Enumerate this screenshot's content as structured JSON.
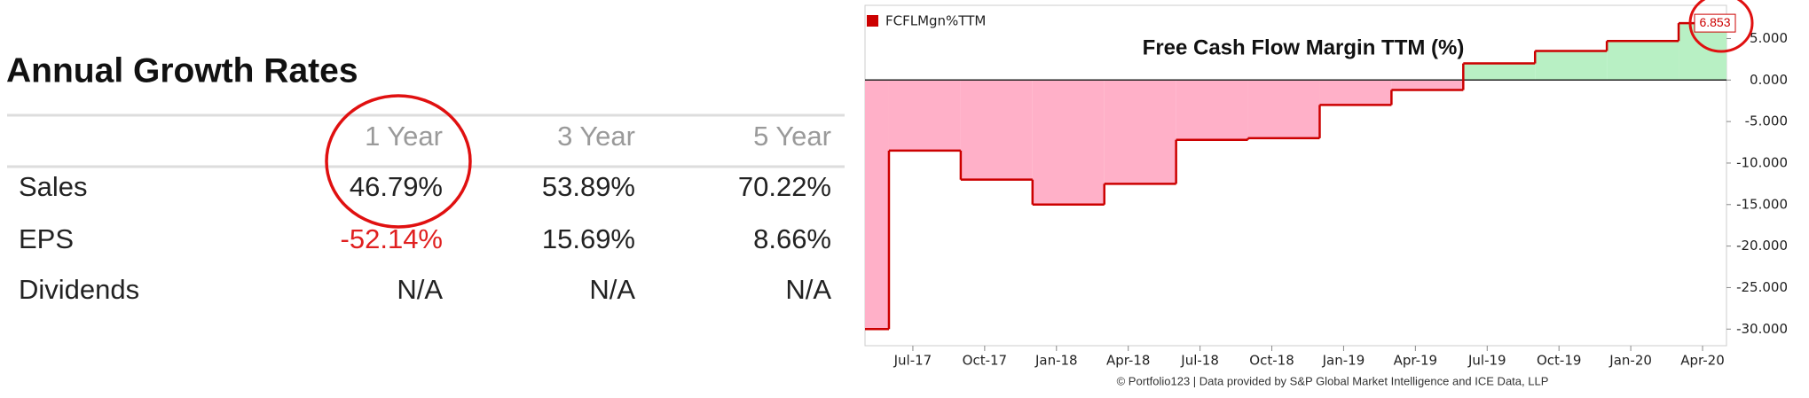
{
  "table": {
    "title": "Annual Growth Rates",
    "header": [
      "1 Year",
      "3 Year",
      "5 Year"
    ],
    "rows": [
      [
        "Sales",
        "46.79%",
        "53.89%",
        "70.22%"
      ],
      [
        "EPS",
        "-52.14%",
        "15.69%",
        "8.66%"
      ],
      [
        "Dividends",
        "N/A",
        "N/A",
        "N/A"
      ]
    ]
  },
  "chart_data": {
    "type": "step-area",
    "title": "Free Cash Flow Margin TTM (%)",
    "footer": "© Portfolio123 | Data provided by S&P Global Market Intelligence and ICE Data, LLP",
    "series": [
      {
        "name": "FCFLMgn%TTM",
        "color": "#cc0000",
        "positive_fill": "#b8f0c4",
        "negative_fill": "#ffb0c8",
        "x": [
          "2017-05",
          "2017-06",
          "2017-09",
          "2017-12",
          "2018-03",
          "2018-06",
          "2018-09",
          "2018-12",
          "2019-03",
          "2019-06",
          "2019-09",
          "2019-12",
          "2020-03"
        ],
        "values": [
          -30,
          -8.5,
          -12,
          -15,
          -12.5,
          -7.2,
          -7,
          -3,
          -1.2,
          2,
          3.5,
          4.7,
          6.853
        ],
        "value_labels": [
          null,
          null,
          null,
          null,
          null,
          null,
          null,
          null,
          null,
          null,
          null,
          null,
          "6.853"
        ]
      }
    ],
    "xlim": [
      "2017-05",
      "2020-05"
    ],
    "xticks": [
      {
        "value": "2017-07",
        "label": "Jul-17"
      },
      {
        "value": "2017-10",
        "label": "Oct-17"
      },
      {
        "value": "2018-01",
        "label": "Jan-18"
      },
      {
        "value": "2018-04",
        "label": "Apr-18"
      },
      {
        "value": "2018-07",
        "label": "Jul-18"
      },
      {
        "value": "2018-10",
        "label": "Oct-18"
      },
      {
        "value": "2019-01",
        "label": "Jan-19"
      },
      {
        "value": "2019-04",
        "label": "Apr-19"
      },
      {
        "value": "2019-07",
        "label": "Jul-19"
      },
      {
        "value": "2019-10",
        "label": "Oct-19"
      },
      {
        "value": "2020-01",
        "label": "Jan-20"
      },
      {
        "value": "2020-04",
        "label": "Apr-20"
      }
    ],
    "ylim": [
      -32,
      9
    ],
    "yticks": [
      {
        "value": 5,
        "label": "5.000"
      },
      {
        "value": 0,
        "label": "0.000"
      },
      {
        "value": -5,
        "label": "-5.000"
      },
      {
        "value": -10,
        "label": "-10.000"
      },
      {
        "value": -15,
        "label": "-15.000"
      },
      {
        "value": -20,
        "label": "-20.000"
      },
      {
        "value": -25,
        "label": "-25.000"
      },
      {
        "value": -30,
        "label": "-30.000"
      }
    ]
  }
}
